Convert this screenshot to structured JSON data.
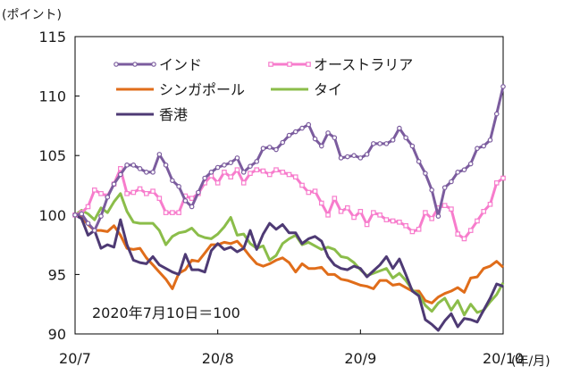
{
  "chart_data": {
    "type": "line",
    "unit_label": "(ポイント)",
    "x_unit_label": "(年/月)",
    "annotation": "2020年7月10日＝100",
    "ylim": [
      90,
      115
    ],
    "yticks": [
      90,
      95,
      100,
      105,
      110,
      115
    ],
    "xlim": [
      0,
      66
    ],
    "xticks": [
      {
        "x": 0,
        "label": "20/7"
      },
      {
        "x": 22,
        "label": "20/8"
      },
      {
        "x": 44,
        "label": "20/9"
      },
      {
        "x": 66,
        "label": "20/10"
      }
    ],
    "grid": false,
    "legend_position": "top",
    "series": [
      {
        "name": "インド",
        "color": "#7b5c9e",
        "marker": "circle",
        "values": [
          100,
          100.1,
          99.3,
          98.7,
          99.9,
          101.5,
          102.6,
          103.4,
          104.2,
          104.2,
          103.9,
          103.6,
          103.6,
          105.1,
          104.2,
          102.9,
          102.4,
          101.2,
          100.7,
          101.9,
          103.1,
          103.6,
          104.0,
          104.2,
          104.4,
          104.8,
          103.6,
          104.1,
          104.5,
          105.6,
          105.7,
          105.5,
          106.1,
          106.7,
          107.0,
          107.3,
          107.6,
          106.4,
          105.8,
          106.9,
          106.5,
          104.8,
          104.9,
          105.0,
          104.8,
          105.1,
          106.0,
          106.0,
          106.0,
          106.3,
          107.3,
          106.5,
          105.8,
          104.5,
          103.5,
          102.1,
          99.9,
          102.3,
          102.8,
          103.6,
          103.8,
          104.3,
          105.6,
          105.8,
          106.3,
          108.5,
          110.8
        ]
      },
      {
        "name": "オーストラリア",
        "color": "#f77ccc",
        "marker": "square",
        "values": [
          100,
          100.2,
          100.7,
          102.1,
          101.8,
          101.6,
          102.6,
          103.9,
          101.8,
          101.9,
          102.2,
          101.8,
          102.0,
          101.4,
          100.2,
          100.2,
          100.2,
          101.6,
          101.4,
          101.8,
          102.7,
          103.3,
          102.7,
          103.6,
          103.2,
          103.8,
          102.7,
          103.5,
          103.8,
          103.7,
          103.4,
          103.8,
          103.6,
          103.4,
          103.2,
          102.5,
          101.9,
          102.0,
          101.0,
          100.0,
          101.4,
          100.3,
          100.6,
          99.8,
          100.3,
          99.2,
          100.2,
          100.0,
          99.6,
          99.5,
          99.4,
          99.1,
          98.6,
          98.8,
          100.2,
          99.7,
          100.6,
          100.8,
          100.5,
          98.4,
          98.0,
          98.7,
          99.5,
          100.3,
          100.9,
          102.7,
          103.1
        ]
      },
      {
        "name": "シンガポール",
        "color": "#e06d1a",
        "marker": "none",
        "values": [
          100,
          99.8,
          99.2,
          98.7,
          98.7,
          98.6,
          99.1,
          98.3,
          97.2,
          97.1,
          97.2,
          96.4,
          95.8,
          95.2,
          94.6,
          93.8,
          95.1,
          95.4,
          96.2,
          96.1,
          96.8,
          97.5,
          97.5,
          97.7,
          97.6,
          97.8,
          97.2,
          96.5,
          95.9,
          95.7,
          95.9,
          96.2,
          96.4,
          96.0,
          95.2,
          95.9,
          95.5,
          95.5,
          95.6,
          95.0,
          95.0,
          94.6,
          94.5,
          94.3,
          94.1,
          94.0,
          93.8,
          94.5,
          94.5,
          94.1,
          94.2,
          93.9,
          93.6,
          93.6,
          92.8,
          92.6,
          93.1,
          93.4,
          93.6,
          93.9,
          93.5,
          94.7,
          94.8,
          95.5,
          95.7,
          96.1,
          95.6
        ]
      },
      {
        "name": "タイ",
        "color": "#8bbd4a",
        "marker": "none",
        "values": [
          100,
          100.4,
          100.1,
          99.6,
          100.6,
          100.2,
          101.1,
          101.8,
          100.3,
          99.4,
          99.3,
          99.3,
          99.3,
          98.7,
          97.5,
          98.2,
          98.5,
          98.6,
          98.9,
          98.3,
          98.1,
          98.0,
          98.4,
          99.0,
          99.8,
          98.3,
          98.4,
          97.6,
          97.2,
          97.4,
          96.2,
          96.6,
          97.6,
          98.0,
          98.3,
          97.5,
          97.7,
          97.4,
          97.1,
          97.3,
          97.1,
          96.5,
          96.4,
          96.0,
          95.4,
          94.9,
          95.1,
          95.3,
          95.5,
          94.7,
          95.1,
          94.5,
          93.7,
          93.3,
          92.4,
          91.9,
          92.6,
          93.0,
          92.0,
          92.8,
          91.6,
          92.5,
          91.8,
          92.0,
          92.7,
          93.3,
          94.3
        ]
      },
      {
        "name": "香港",
        "color": "#4e3a74",
        "marker": "none",
        "values": [
          100,
          99.7,
          98.3,
          98.7,
          97.2,
          97.5,
          97.3,
          99.6,
          97.5,
          96.2,
          96.0,
          95.9,
          96.5,
          95.8,
          95.5,
          95.2,
          95.0,
          96.7,
          95.4,
          95.4,
          95.2,
          97.0,
          97.6,
          97.1,
          97.3,
          96.9,
          97.2,
          98.7,
          97.1,
          98.4,
          99.3,
          98.8,
          99.2,
          98.5,
          98.5,
          97.6,
          98.0,
          98.2,
          97.8,
          96.5,
          95.8,
          95.5,
          95.4,
          95.7,
          95.5,
          94.8,
          95.3,
          95.8,
          96.5,
          95.5,
          96.3,
          95.0,
          93.6,
          93.2,
          91.2,
          90.8,
          90.3,
          91.1,
          91.7,
          90.6,
          91.3,
          91.2,
          91.0,
          92.0,
          93.0,
          94.2,
          94.0
        ]
      }
    ]
  }
}
